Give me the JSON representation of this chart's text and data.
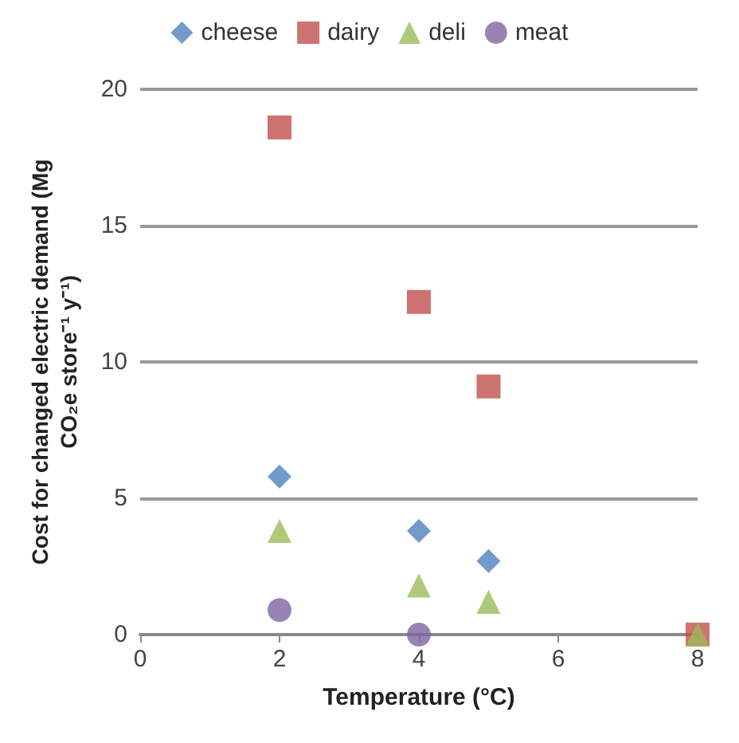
{
  "chart_data": {
    "type": "scatter",
    "xlabel": "Temperature (°C)",
    "ylabel": "Cost for changed electric demand (Mg\nCO₂e store⁻¹ y⁻¹)",
    "xlim": [
      0,
      8
    ],
    "xticks": [
      0,
      2,
      4,
      6,
      8
    ],
    "ylim": [
      0,
      20
    ],
    "yticks": [
      0,
      5,
      10,
      15,
      20
    ],
    "grid": "y",
    "legend": "top",
    "series": [
      {
        "name": "cheese",
        "color": "#4f81bd",
        "marker": "diamond",
        "x": [
          2,
          4,
          5
        ],
        "values": [
          5.8,
          3.8,
          2.7
        ]
      },
      {
        "name": "dairy",
        "color": "#c0504d",
        "marker": "square",
        "x": [
          2,
          4,
          5,
          8
        ],
        "values": [
          18.6,
          12.2,
          9.1,
          0
        ]
      },
      {
        "name": "deli",
        "color": "#9bbb59",
        "marker": "triangle",
        "x": [
          2,
          4,
          5,
          8
        ],
        "values": [
          3.8,
          1.8,
          1.2,
          0
        ]
      },
      {
        "name": "meat",
        "color": "#8064a2",
        "marker": "circle",
        "x": [
          2,
          4
        ],
        "values": [
          0.9,
          0
        ]
      }
    ]
  }
}
